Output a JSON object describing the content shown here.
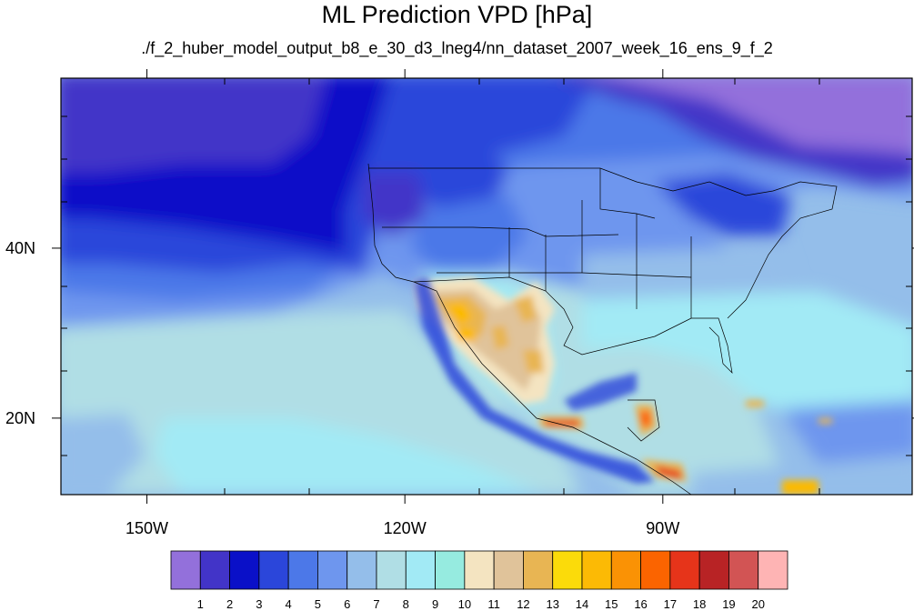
{
  "title": "ML Prediction VPD [hPa]",
  "subtitle": "./f_2_huber_model_output_b8_e_30_d3_lneg4/nn_dataset_2007_week_16_ens_9_f_2",
  "map": {
    "lon_range": [
      -160,
      -61
    ],
    "lat_range": [
      11,
      60
    ],
    "x_ticks": [
      {
        "lon": -150,
        "label": "150W"
      },
      {
        "lon": -120,
        "label": "120W"
      },
      {
        "lon": -90,
        "label": "90W"
      }
    ],
    "y_ticks": [
      {
        "lat": 40,
        "label": "40N"
      },
      {
        "lat": 20,
        "label": "20N"
      }
    ]
  },
  "colorbar": {
    "labels": [
      "1",
      "2",
      "3",
      "4",
      "5",
      "6",
      "7",
      "8",
      "9",
      "10",
      "11",
      "12",
      "13",
      "14",
      "15",
      "16",
      "17",
      "18",
      "19",
      "20"
    ],
    "colors": [
      "#9370DB",
      "#4234C8",
      "#0A10C8",
      "#2B46DA",
      "#4C78E8",
      "#6E96EE",
      "#94BEEA",
      "#B0DEE5",
      "#A2EAF5",
      "#96EBE0",
      "#F4E4C1",
      "#E0C39A",
      "#E8B553",
      "#FBDB0A",
      "#FCBA05",
      "#FA9205",
      "#FB6400",
      "#E6341A",
      "#B82325",
      "#D25454",
      "#FEB4B4"
    ]
  }
}
